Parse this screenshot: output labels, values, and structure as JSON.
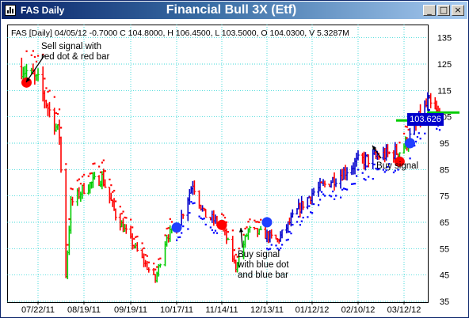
{
  "window": {
    "label": "FAS Daily",
    "title": "Financial Bull 3X (Etf)",
    "buttons": {
      "minimize": "_",
      "maximize": "□",
      "close": "×"
    }
  },
  "info_line": "FAS [Daily] 04/05/12  -0.7000 C 104.8000, H 106.4500, L 103.5000, O 104.0300, V 5.3287M",
  "current_price_label": "103.626",
  "annotations": {
    "sell": [
      "Sell signal with",
      "red dot & red bar"
    ],
    "buy_mid": [
      "Buy signal",
      "with blue dot",
      "and blue bar"
    ],
    "buy_right": [
      "Buy signal"
    ]
  },
  "colors": {
    "up_bar": "#00cc00",
    "down_bar": "#ff0000",
    "buy_bar": "#0000cc",
    "grid": "#00cccc",
    "dot_red": "#ff0000",
    "dot_blue": "#0000ff",
    "signal_sell": "#ff0000",
    "signal_buy": "#1f3fff",
    "price_box": "#0000cc",
    "price_line": "#00cc00"
  },
  "chart_data": {
    "type": "bar",
    "subtype": "ohlc",
    "ylim": [
      35,
      140
    ],
    "yticks": [
      35,
      45,
      55,
      65,
      75,
      85,
      95,
      105,
      115,
      125,
      135
    ],
    "xticks": [
      "07/22/11",
      "08/19/11",
      "09/19/11",
      "10/17/11",
      "11/14/11",
      "12/13/11",
      "01/12/12",
      "02/10/12",
      "03/12/12"
    ],
    "grid": true,
    "last_price": 103.626,
    "key_close": [
      [
        "07/12/11",
        124
      ],
      [
        "07/22/11",
        118
      ],
      [
        "08/04/11",
        98
      ],
      [
        "08/08/11",
        45
      ],
      [
        "08/11/11",
        72
      ],
      [
        "08/19/11",
        78
      ],
      [
        "08/31/11",
        82
      ],
      [
        "09/09/11",
        68
      ],
      [
        "09/22/11",
        55
      ],
      [
        "10/04/11",
        43
      ],
      [
        "10/11/11",
        60
      ],
      [
        "10/17/11",
        62
      ],
      [
        "10/27/11",
        80
      ],
      [
        "11/03/11",
        68
      ],
      [
        "11/14/11",
        64
      ],
      [
        "11/23/11",
        48
      ],
      [
        "12/01/11",
        62
      ],
      [
        "12/13/11",
        60
      ],
      [
        "12/20/11",
        58
      ],
      [
        "01/03/12",
        70
      ],
      [
        "01/12/12",
        76
      ],
      [
        "01/27/12",
        82
      ],
      [
        "02/10/12",
        88
      ],
      [
        "02/24/12",
        90
      ],
      [
        "03/09/12",
        92
      ],
      [
        "03/16/12",
        97
      ],
      [
        "03/22/12",
        104
      ],
      [
        "03/28/12",
        110
      ],
      [
        "04/05/12",
        104.8
      ]
    ],
    "signals": [
      {
        "type": "sell",
        "date": "07/15/11",
        "price": 118
      },
      {
        "type": "buy",
        "date": "10/17/11",
        "price": 63
      },
      {
        "type": "sell",
        "date": "11/14/11",
        "price": 64
      },
      {
        "type": "buy",
        "date": "12/13/11",
        "price": 65
      },
      {
        "type": "sell",
        "date": "03/09/12",
        "price": 88
      },
      {
        "type": "buy",
        "date": "03/16/12",
        "price": 95
      }
    ]
  }
}
